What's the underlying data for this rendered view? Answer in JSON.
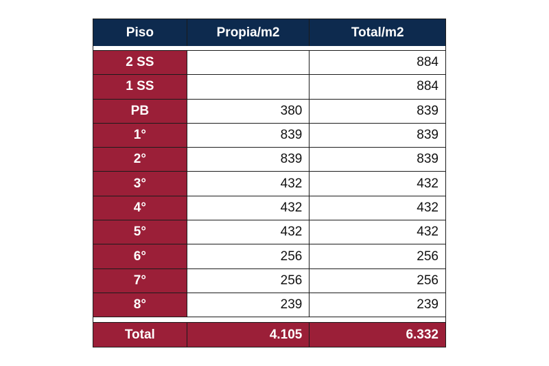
{
  "headers": {
    "floor": "Piso",
    "own": "Propia/m2",
    "total": "Total/m2"
  },
  "rows": [
    {
      "floor": "2 SS",
      "own": "",
      "total": "884"
    },
    {
      "floor": "1 SS",
      "own": "",
      "total": "884"
    },
    {
      "floor": "PB",
      "own": "380",
      "total": "839"
    },
    {
      "floor": "1°",
      "own": "839",
      "total": "839"
    },
    {
      "floor": "2°",
      "own": "839",
      "total": "839"
    },
    {
      "floor": "3°",
      "own": "432",
      "total": "432"
    },
    {
      "floor": "4°",
      "own": "432",
      "total": "432"
    },
    {
      "floor": "5°",
      "own": "432",
      "total": "432"
    },
    {
      "floor": "6°",
      "own": "256",
      "total": "256"
    },
    {
      "floor": "7°",
      "own": "256",
      "total": "256"
    },
    {
      "floor": "8°",
      "own": "239",
      "total": "239"
    }
  ],
  "totals": {
    "label": "Total",
    "own": "4.105",
    "total": "6.332"
  },
  "colors": {
    "header_bg": "#0d2a4e",
    "floor_bg": "#9b1f38",
    "text_light": "#ffffff"
  }
}
